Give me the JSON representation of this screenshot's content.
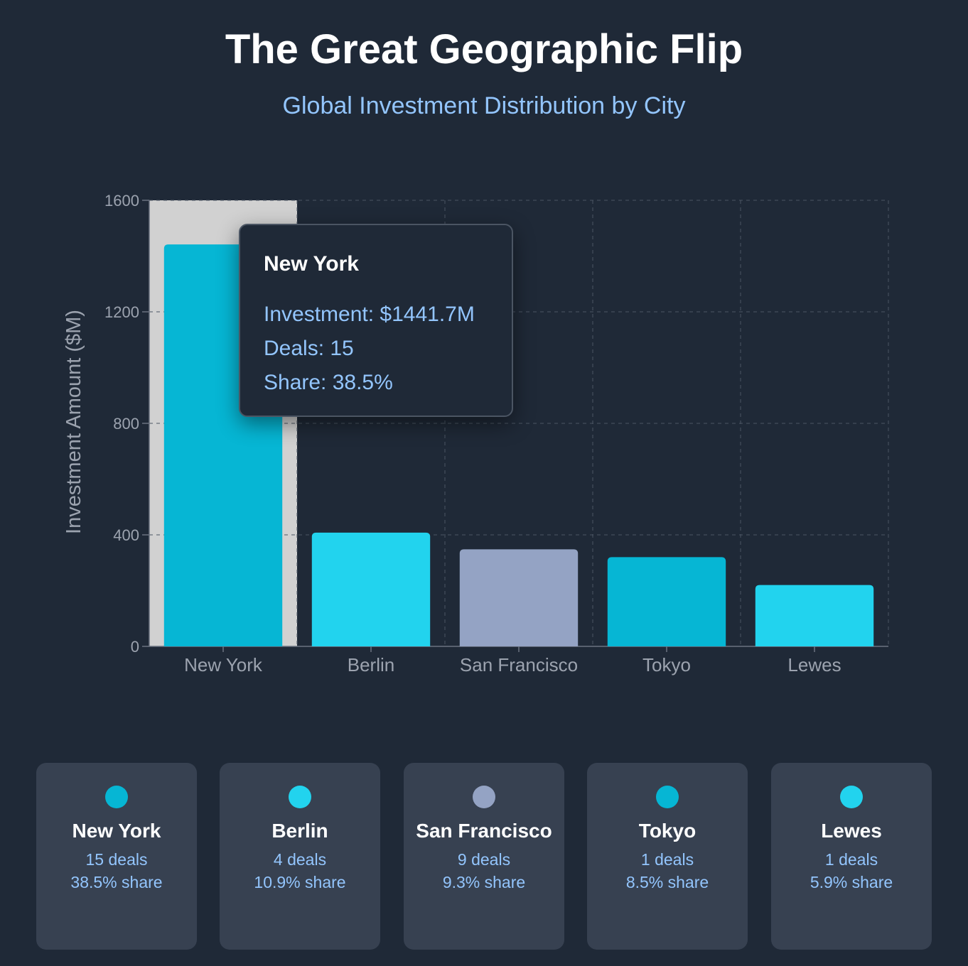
{
  "header": {
    "title": "The Great Geographic Flip",
    "subtitle": "Global Investment Distribution by City"
  },
  "chart_data": {
    "type": "bar",
    "title": "",
    "xlabel": "",
    "ylabel": "Investment Amount ($M)",
    "ylim": [
      0,
      1600
    ],
    "yticks": [
      0,
      400,
      800,
      1200,
      1600
    ],
    "grid": true,
    "categories": [
      "New York",
      "Berlin",
      "San Francisco",
      "Tokyo",
      "Lewes"
    ],
    "values": [
      1441.7,
      408,
      348,
      320,
      220
    ],
    "colors": [
      "#06b6d4",
      "#22d3ee",
      "#94a3c4",
      "#06b6d4",
      "#22d3ee"
    ],
    "highlighted": "New York"
  },
  "tooltip": {
    "title": "New York",
    "investment": "Investment: $1441.7M",
    "deals": "Deals: 15",
    "share": "Share: 38.5%"
  },
  "cards": [
    {
      "name": "New York",
      "deals": "15 deals",
      "share": "38.5% share",
      "color": "#06b6d4"
    },
    {
      "name": "Berlin",
      "deals": "4 deals",
      "share": "10.9% share",
      "color": "#22d3ee"
    },
    {
      "name": "San Francisco",
      "deals": "9 deals",
      "share": "9.3% share",
      "color": "#94a3c4"
    },
    {
      "name": "Tokyo",
      "deals": "1 deals",
      "share": "8.5% share",
      "color": "#06b6d4"
    },
    {
      "name": "Lewes",
      "deals": "1 deals",
      "share": "5.9% share",
      "color": "#22d3ee"
    }
  ]
}
